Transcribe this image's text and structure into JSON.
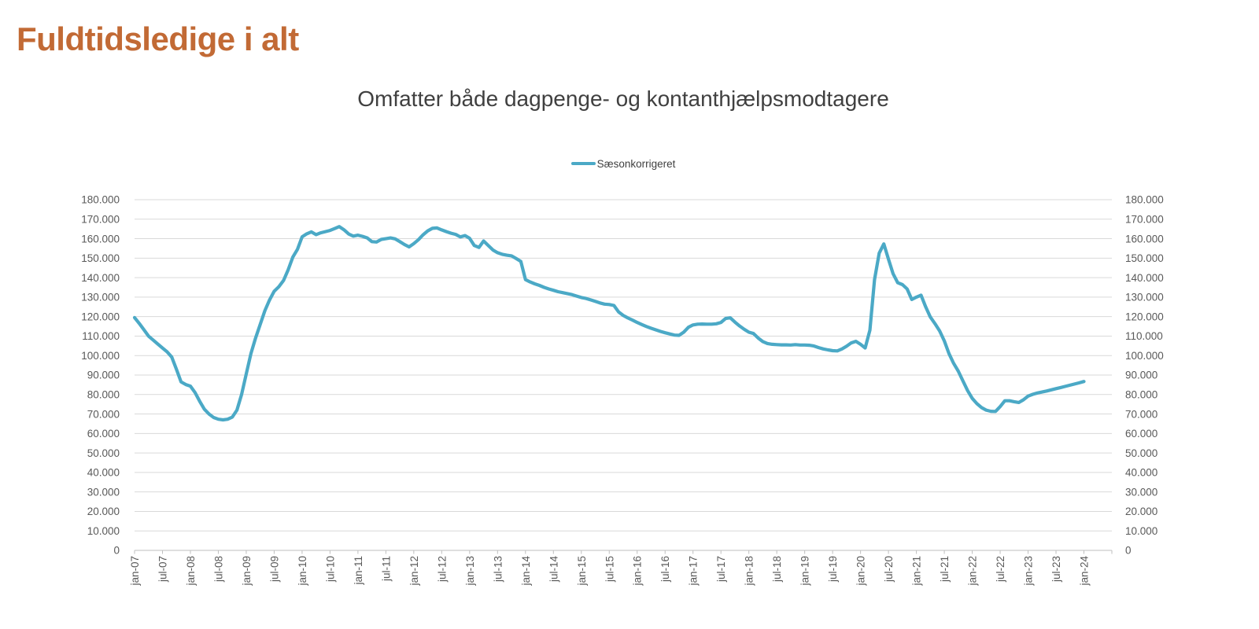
{
  "page": {
    "title": "Fuldtidsledige i alt"
  },
  "colors": {
    "background": "#FFFFFF",
    "title": "#C26A35",
    "subtitle": "#404040",
    "legend_text": "#3F3F3F",
    "axis_text": "#595959",
    "gridline": "#D9D9D9",
    "axis_line": "#BFBFBF",
    "series": "#4BA9C6"
  },
  "chart_data": {
    "type": "line",
    "title": "Omfatter både dagpenge- og kontanthjælpsmodtagere",
    "xlabel": "",
    "ylabel": "",
    "ylim": [
      0,
      180000
    ],
    "y_tick_step": 10000,
    "grid": "horizontal",
    "legend_position": "top-center",
    "axes": "dual-y, same scale left and right",
    "x_tick_labels": [
      "jan-07",
      "jul-07",
      "jan-08",
      "jul-08",
      "jan-09",
      "jul-09",
      "jan-10",
      "jul-10",
      "jan-11",
      "jul-11",
      "jan-12",
      "jul-12",
      "jan-13",
      "jul-13",
      "jan-14",
      "jul-14",
      "jan-15",
      "jul-15",
      "jan-16",
      "jul-16",
      "jan-17",
      "jul-17",
      "jan-18",
      "jul-18",
      "jan-19",
      "jul-19",
      "jan-20",
      "jul-20",
      "jan-21",
      "jul-21",
      "jan-22",
      "jul-22",
      "jan-23",
      "jul-23",
      "jan-24"
    ],
    "y_tick_labels_top_down": [
      "180.000",
      "170.000",
      "160.000",
      "150.000",
      "140.000",
      "130.000",
      "120.000",
      "110.000",
      "100.000",
      "90.000",
      "80.000",
      "70.000",
      "60.000",
      "50.000",
      "40.000",
      "30.000",
      "20.000",
      "10.000",
      "0"
    ],
    "x_start": "jan-07",
    "x_end": "jan-24",
    "x_frequency": "monthly",
    "series": [
      {
        "name": "Sæsonkorrigeret",
        "color": "#4BA9C6",
        "values": [
          119500,
          116500,
          113300,
          110000,
          107900,
          105900,
          103900,
          101900,
          99200,
          93000,
          86500,
          85100,
          84300,
          81000,
          76500,
          72500,
          70000,
          68200,
          67300,
          67000,
          67300,
          68400,
          72000,
          80000,
          90500,
          101000,
          109000,
          116000,
          123000,
          128500,
          133000,
          135300,
          138500,
          144000,
          150500,
          154500,
          160900,
          162500,
          163500,
          162100,
          163000,
          163600,
          164200,
          165200,
          166200,
          164600,
          162400,
          161300,
          161800,
          161200,
          160400,
          158500,
          158300,
          159600,
          160000,
          160400,
          159900,
          158500,
          157000,
          155800,
          157500,
          159500,
          162000,
          164000,
          165300,
          165500,
          164500,
          163600,
          162800,
          162200,
          160900,
          161600,
          160200,
          156500,
          155500,
          158800,
          156500,
          154200,
          152800,
          152000,
          151500,
          151200,
          149800,
          148300,
          139000,
          137800,
          136800,
          136000,
          135000,
          134200,
          133500,
          132800,
          132300,
          131800,
          131300,
          130500,
          129800,
          129300,
          128600,
          127800,
          127000,
          126400,
          126200,
          125700,
          122400,
          120600,
          119300,
          118200,
          117000,
          115900,
          114900,
          114000,
          113200,
          112400,
          111700,
          111100,
          110500,
          110400,
          112000,
          114500,
          115700,
          116100,
          116200,
          116100,
          116100,
          116300,
          117000,
          119000,
          119400,
          117200,
          115200,
          113500,
          112000,
          111300,
          109000,
          107200,
          106200,
          105800,
          105600,
          105500,
          105500,
          105400,
          105600,
          105400,
          105400,
          105300,
          104900,
          104100,
          103400,
          102900,
          102500,
          102400,
          103400,
          104800,
          106500,
          107300,
          105800,
          103900,
          113000,
          139000,
          152500,
          157300,
          149500,
          142000,
          137400,
          136400,
          134200,
          128800,
          130000,
          131000,
          125000,
          119800,
          116300,
          112600,
          107500,
          101000,
          96000,
          92000,
          87000,
          82000,
          78000,
          75300,
          73300,
          72000,
          71400,
          71300,
          73800,
          76800,
          76800,
          76300,
          75900,
          77300,
          79200,
          80100,
          80800,
          81300,
          81800,
          82400,
          83000,
          83600,
          84200,
          84800,
          85400,
          86000,
          86700
        ]
      }
    ]
  }
}
